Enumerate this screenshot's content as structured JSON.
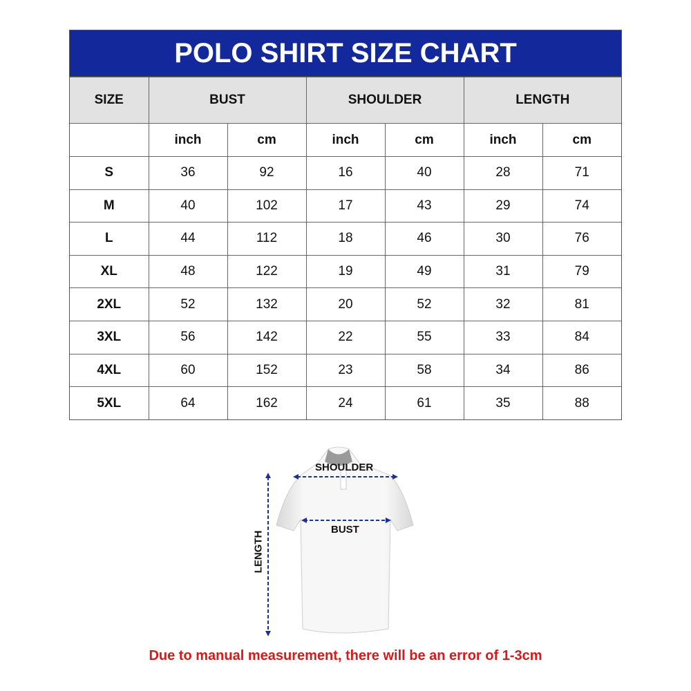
{
  "title": "POLO SHIRT SIZE CHART",
  "headers": {
    "size": "SIZE",
    "bust": "BUST",
    "shoulder": "SHOULDER",
    "length": "LENGTH"
  },
  "units": [
    "inch",
    "cm",
    "inch",
    "cm",
    "inch",
    "cm"
  ],
  "rows": [
    {
      "size": "S",
      "values": [
        "36",
        "92",
        "16",
        "40",
        "28",
        "71"
      ]
    },
    {
      "size": "M",
      "values": [
        "40",
        "102",
        "17",
        "43",
        "29",
        "74"
      ]
    },
    {
      "size": "L",
      "values": [
        "44",
        "112",
        "18",
        "46",
        "30",
        "76"
      ]
    },
    {
      "size": "XL",
      "values": [
        "48",
        "122",
        "19",
        "49",
        "31",
        "79"
      ]
    },
    {
      "size": "2XL",
      "values": [
        "52",
        "132",
        "20",
        "52",
        "32",
        "81"
      ]
    },
    {
      "size": "3XL",
      "values": [
        "56",
        "142",
        "22",
        "55",
        "33",
        "84"
      ]
    },
    {
      "size": "4XL",
      "values": [
        "60",
        "152",
        "23",
        "58",
        "34",
        "86"
      ]
    },
    {
      "size": "5XL",
      "values": [
        "64",
        "162",
        "24",
        "61",
        "35",
        "88"
      ]
    }
  ],
  "diagram": {
    "shoulder": "SHOULDER",
    "bust": "BUST",
    "length": "LENGTH",
    "arrow_color": "#1f2f8f"
  },
  "note": "Due to manual measurement, there will be an error of 1-3cm",
  "colors": {
    "title_bg": "#13289a",
    "header_bg": "#e2e2e2",
    "note": "#d41b1b"
  }
}
